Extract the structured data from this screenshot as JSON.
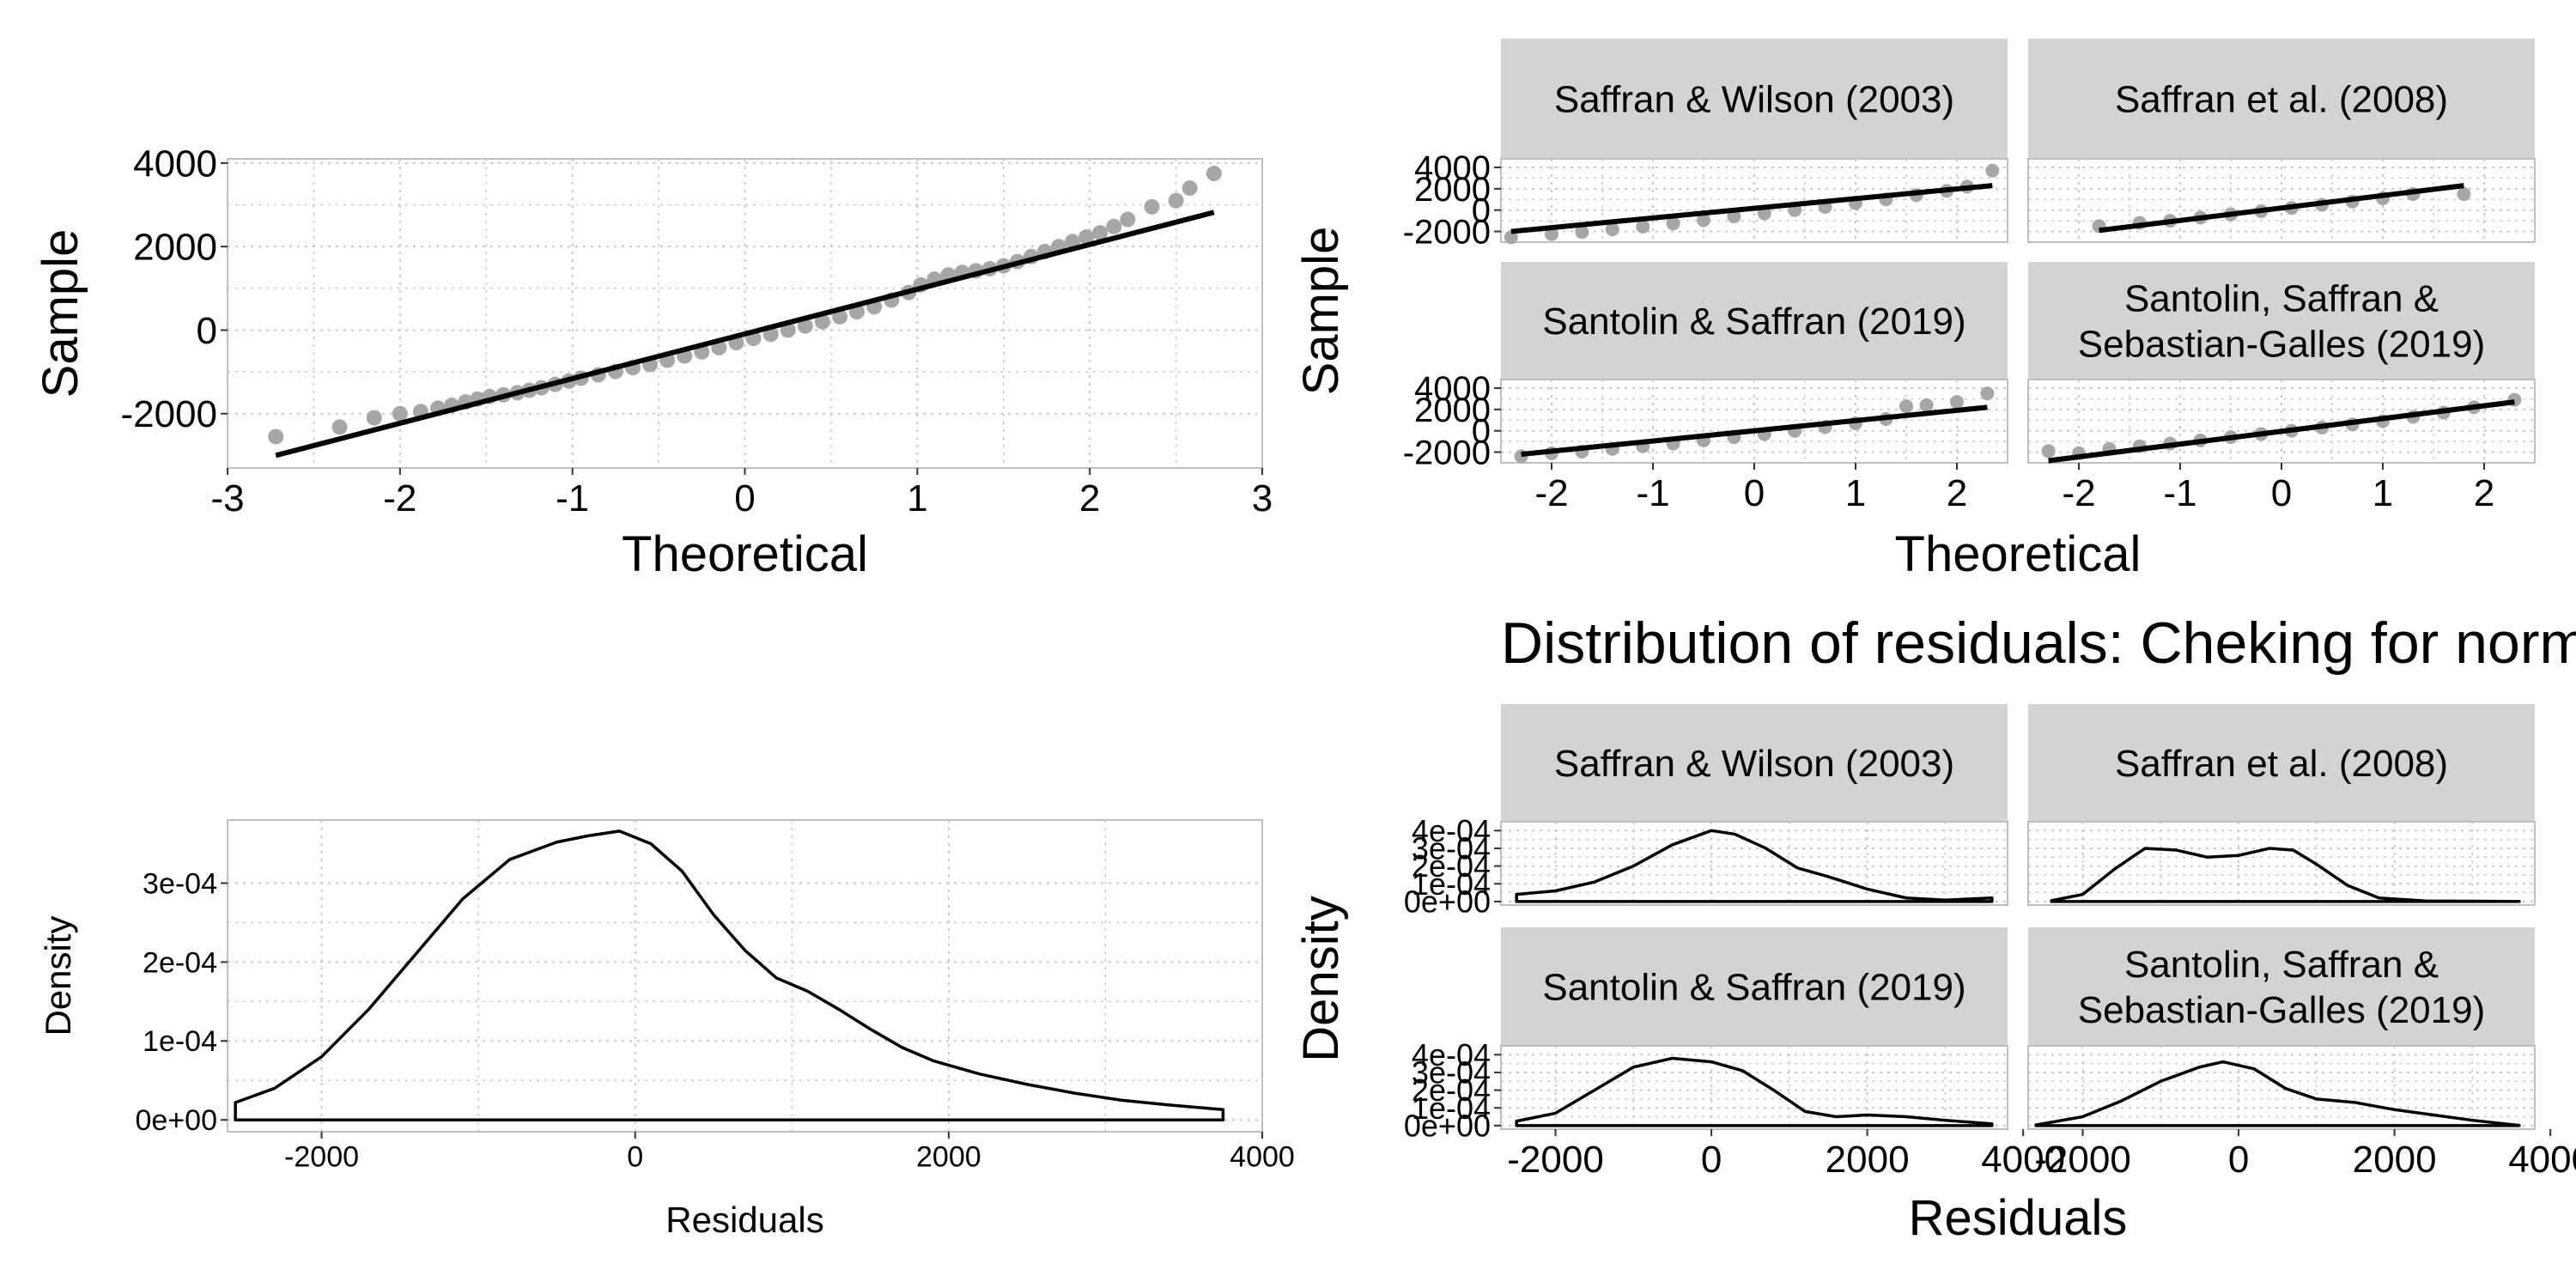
{
  "colors": {
    "points": "#a6a6a6",
    "line": "#000000",
    "grid": "#c8c8c8",
    "strip_bg": "#d3d3d3",
    "panel_border": "#bfbfbf",
    "text": "#000000"
  },
  "chart_data": [
    {
      "id": "qq_all",
      "type": "scatter",
      "xlabel": "Theoretical",
      "ylabel": "Sample",
      "xlim": [
        -3,
        3
      ],
      "ylim": [
        -3300,
        4100
      ],
      "xticks": [
        -3,
        -2,
        -1,
        0,
        1,
        2,
        3
      ],
      "xticklabels": [
        "-3",
        "-2",
        "-1",
        "0",
        "1",
        "2",
        "3"
      ],
      "yticks": [
        -2000,
        0,
        2000,
        4000
      ],
      "yticklabels": [
        "-2000",
        "0",
        "2000",
        "4000"
      ],
      "line": [
        [
          -2.72,
          -3000
        ],
        [
          2.72,
          2820
        ]
      ],
      "points": [
        [
          -2.72,
          -2550
        ],
        [
          -2.35,
          -2320
        ],
        [
          -2.15,
          -2100
        ],
        [
          -2.0,
          -2000
        ],
        [
          -1.88,
          -1950
        ],
        [
          -1.78,
          -1870
        ],
        [
          -1.7,
          -1800
        ],
        [
          -1.62,
          -1720
        ],
        [
          -1.55,
          -1650
        ],
        [
          -1.48,
          -1590
        ],
        [
          -1.4,
          -1550
        ],
        [
          -1.32,
          -1500
        ],
        [
          -1.25,
          -1440
        ],
        [
          -1.18,
          -1380
        ],
        [
          -1.1,
          -1300
        ],
        [
          -1.02,
          -1220
        ],
        [
          -0.95,
          -1150
        ],
        [
          -0.85,
          -1070
        ],
        [
          -0.75,
          -990
        ],
        [
          -0.65,
          -900
        ],
        [
          -0.55,
          -820
        ],
        [
          -0.45,
          -720
        ],
        [
          -0.35,
          -620
        ],
        [
          -0.25,
          -520
        ],
        [
          -0.15,
          -420
        ],
        [
          -0.05,
          -300
        ],
        [
          0.05,
          -200
        ],
        [
          0.15,
          -100
        ],
        [
          0.25,
          0
        ],
        [
          0.35,
          100
        ],
        [
          0.45,
          200
        ],
        [
          0.55,
          320
        ],
        [
          0.65,
          440
        ],
        [
          0.75,
          560
        ],
        [
          0.85,
          720
        ],
        [
          0.95,
          900
        ],
        [
          1.02,
          1080
        ],
        [
          1.1,
          1220
        ],
        [
          1.18,
          1320
        ],
        [
          1.26,
          1380
        ],
        [
          1.34,
          1420
        ],
        [
          1.42,
          1470
        ],
        [
          1.5,
          1540
        ],
        [
          1.58,
          1640
        ],
        [
          1.66,
          1760
        ],
        [
          1.74,
          1880
        ],
        [
          1.82,
          2000
        ],
        [
          1.9,
          2120
        ],
        [
          1.98,
          2230
        ],
        [
          2.06,
          2330
        ],
        [
          2.14,
          2480
        ],
        [
          2.22,
          2650
        ],
        [
          2.36,
          2950
        ],
        [
          2.5,
          3100
        ],
        [
          2.58,
          3400
        ],
        [
          2.72,
          3750
        ]
      ]
    },
    {
      "id": "qq_facets",
      "type": "scatter",
      "xlabel": "Theoretical",
      "ylabel": "Sample",
      "xlim": [
        -2.5,
        2.5
      ],
      "ylim": [
        -3000,
        4800
      ],
      "xticks": [
        -2,
        -1,
        0,
        1,
        2
      ],
      "xticklabels": [
        "-2",
        "-1",
        "0",
        "1",
        "2"
      ],
      "yticks": [
        -2000,
        0,
        2000,
        4000
      ],
      "yticklabels": [
        "-2000",
        "0",
        "2000",
        "4000"
      ],
      "facets": [
        {
          "strip": [
            "Saffran & Wilson (2003)"
          ],
          "line": [
            [
              -2.4,
              -2000
            ],
            [
              2.35,
              2300
            ]
          ],
          "points": [
            [
              -2.4,
              -2550
            ],
            [
              -2.0,
              -2250
            ],
            [
              -1.7,
              -2050
            ],
            [
              -1.4,
              -1800
            ],
            [
              -1.1,
              -1550
            ],
            [
              -0.8,
              -1250
            ],
            [
              -0.5,
              -950
            ],
            [
              -0.2,
              -600
            ],
            [
              0.1,
              -300
            ],
            [
              0.4,
              0
            ],
            [
              0.7,
              300
            ],
            [
              1.0,
              650
            ],
            [
              1.3,
              1000
            ],
            [
              1.6,
              1400
            ],
            [
              1.9,
              1800
            ],
            [
              2.1,
              2200
            ],
            [
              2.35,
              3700
            ]
          ]
        },
        {
          "strip": [
            "Saffran et al. (2008)"
          ],
          "line": [
            [
              -1.8,
              -1900
            ],
            [
              1.8,
              2300
            ]
          ],
          "points": [
            [
              -1.8,
              -1500
            ],
            [
              -1.4,
              -1200
            ],
            [
              -1.1,
              -1000
            ],
            [
              -0.8,
              -700
            ],
            [
              -0.5,
              -400
            ],
            [
              -0.2,
              -100
            ],
            [
              0.1,
              200
            ],
            [
              0.4,
              500
            ],
            [
              0.7,
              800
            ],
            [
              1.0,
              1100
            ],
            [
              1.3,
              1500
            ],
            [
              1.8,
              1500
            ]
          ]
        },
        {
          "strip": [
            "Santolin & Saffran (2019)"
          ],
          "line": [
            [
              -2.3,
              -2200
            ],
            [
              2.3,
              2200
            ]
          ],
          "points": [
            [
              -2.3,
              -2400
            ],
            [
              -2.0,
              -2100
            ],
            [
              -1.7,
              -1950
            ],
            [
              -1.4,
              -1700
            ],
            [
              -1.1,
              -1450
            ],
            [
              -0.8,
              -1200
            ],
            [
              -0.5,
              -900
            ],
            [
              -0.2,
              -600
            ],
            [
              0.1,
              -300
            ],
            [
              0.4,
              0
            ],
            [
              0.7,
              350
            ],
            [
              1.0,
              700
            ],
            [
              1.3,
              1100
            ],
            [
              1.5,
              2300
            ],
            [
              1.7,
              2400
            ],
            [
              2.0,
              2700
            ],
            [
              2.3,
              3500
            ]
          ]
        },
        {
          "strip": [
            "Santolin, Saffran &",
            "Sebastian-Galles (2019)"
          ],
          "line": [
            [
              -2.3,
              -2800
            ],
            [
              2.3,
              2700
            ]
          ],
          "points": [
            [
              -2.3,
              -1900
            ],
            [
              -2.0,
              -2100
            ],
            [
              -1.7,
              -1700
            ],
            [
              -1.4,
              -1450
            ],
            [
              -1.1,
              -1200
            ],
            [
              -0.8,
              -900
            ],
            [
              -0.5,
              -600
            ],
            [
              -0.2,
              -300
            ],
            [
              0.1,
              0
            ],
            [
              0.4,
              300
            ],
            [
              0.7,
              600
            ],
            [
              1.0,
              900
            ],
            [
              1.3,
              1300
            ],
            [
              1.6,
              1700
            ],
            [
              1.9,
              2200
            ],
            [
              2.3,
              2900
            ]
          ]
        }
      ]
    },
    {
      "id": "density_all",
      "type": "area",
      "xlabel": "Residuals",
      "ylabel": "Density",
      "xlim": [
        -2600,
        4000
      ],
      "ylim": [
        -1.5e-05,
        0.00038
      ],
      "xticks": [
        -2000,
        0,
        2000,
        4000
      ],
      "xticklabels": [
        "-2000",
        "0",
        "2000",
        "4000"
      ],
      "yticks": [
        0,
        0.0001,
        0.0002,
        0.0003
      ],
      "yticklabels": [
        "0e+00",
        "1e-04",
        "2e-04",
        "3e-04"
      ],
      "curve": [
        [
          -2550,
          2.2e-05
        ],
        [
          -2300,
          4e-05
        ],
        [
          -2000,
          8e-05
        ],
        [
          -1700,
          0.00014
        ],
        [
          -1400,
          0.00021
        ],
        [
          -1100,
          0.00028
        ],
        [
          -800,
          0.00033
        ],
        [
          -500,
          0.000352
        ],
        [
          -300,
          0.00036
        ],
        [
          -100,
          0.000366
        ],
        [
          100,
          0.00035
        ],
        [
          300,
          0.000315
        ],
        [
          500,
          0.00026
        ],
        [
          700,
          0.000215
        ],
        [
          900,
          0.00018
        ],
        [
          1100,
          0.000163
        ],
        [
          1300,
          0.00014
        ],
        [
          1500,
          0.000115
        ],
        [
          1700,
          9.2e-05
        ],
        [
          1900,
          7.5e-05
        ],
        [
          2200,
          5.8e-05
        ],
        [
          2500,
          4.5e-05
        ],
        [
          2800,
          3.4e-05
        ],
        [
          3100,
          2.5e-05
        ],
        [
          3400,
          1.9e-05
        ],
        [
          3750,
          1.3e-05
        ]
      ]
    },
    {
      "id": "density_facets",
      "type": "area",
      "title": "Distribution of residuals: Cheking for normality",
      "xlabel": "Residuals",
      "ylabel": "Density",
      "xlim": [
        -2700,
        3800
      ],
      "ylim": [
        -2e-05,
        0.00045
      ],
      "xticks": [
        -2000,
        0,
        2000,
        4000
      ],
      "xticklabels": [
        "-2000",
        "0",
        "2000",
        "4000"
      ],
      "yticks": [
        0,
        0.0001,
        0.0002,
        0.0003,
        0.0004
      ],
      "yticklabels": [
        "0e+00",
        "1e-04",
        "2e-04",
        "3e-04",
        "4e-04"
      ],
      "facets": [
        {
          "strip": [
            "Saffran & Wilson (2003)"
          ],
          "curve": [
            [
              -2500,
              4e-05
            ],
            [
              -2000,
              6e-05
            ],
            [
              -1500,
              0.00011
            ],
            [
              -1000,
              0.0002
            ],
            [
              -500,
              0.00032
            ],
            [
              0,
              0.0004
            ],
            [
              300,
              0.00038
            ],
            [
              700,
              0.0003
            ],
            [
              1100,
              0.00019
            ],
            [
              1500,
              0.00014
            ],
            [
              2000,
              7e-05
            ],
            [
              2500,
              2e-05
            ],
            [
              3000,
              8e-06
            ],
            [
              3600,
              2e-05
            ]
          ]
        },
        {
          "strip": [
            "Saffran et al. (2008)"
          ],
          "curve": [
            [
              -2400,
              5e-06
            ],
            [
              -2000,
              4e-05
            ],
            [
              -1600,
              0.00018
            ],
            [
              -1200,
              0.0003
            ],
            [
              -800,
              0.00029
            ],
            [
              -400,
              0.00025
            ],
            [
              0,
              0.00026
            ],
            [
              400,
              0.0003
            ],
            [
              700,
              0.00029
            ],
            [
              1000,
              0.00021
            ],
            [
              1400,
              9e-05
            ],
            [
              1800,
              2e-05
            ],
            [
              2400,
              3e-06
            ],
            [
              3600,
              5e-07
            ]
          ]
        },
        {
          "strip": [
            "Santolin & Saffran (2019)"
          ],
          "curve": [
            [
              -2500,
              2.5e-05
            ],
            [
              -2000,
              7e-05
            ],
            [
              -1500,
              0.0002
            ],
            [
              -1000,
              0.00033
            ],
            [
              -500,
              0.00038
            ],
            [
              0,
              0.00036
            ],
            [
              400,
              0.00031
            ],
            [
              800,
              0.0002
            ],
            [
              1200,
              8e-05
            ],
            [
              1600,
              5e-05
            ],
            [
              2000,
              6e-05
            ],
            [
              2500,
              5e-05
            ],
            [
              3000,
              3e-05
            ],
            [
              3600,
              1e-05
            ]
          ]
        },
        {
          "strip": [
            "Santolin, Saffran &",
            "Sebastian-Galles (2019)"
          ],
          "curve": [
            [
              -2600,
              4e-06
            ],
            [
              -2000,
              5e-05
            ],
            [
              -1500,
              0.00014
            ],
            [
              -1000,
              0.00025
            ],
            [
              -500,
              0.00033
            ],
            [
              -200,
              0.00036
            ],
            [
              200,
              0.00032
            ],
            [
              600,
              0.00021
            ],
            [
              1000,
              0.00015
            ],
            [
              1500,
              0.00013
            ],
            [
              2000,
              9e-05
            ],
            [
              2500,
              6e-05
            ],
            [
              3000,
              3e-05
            ],
            [
              3600,
              1e-06
            ]
          ]
        }
      ]
    }
  ]
}
